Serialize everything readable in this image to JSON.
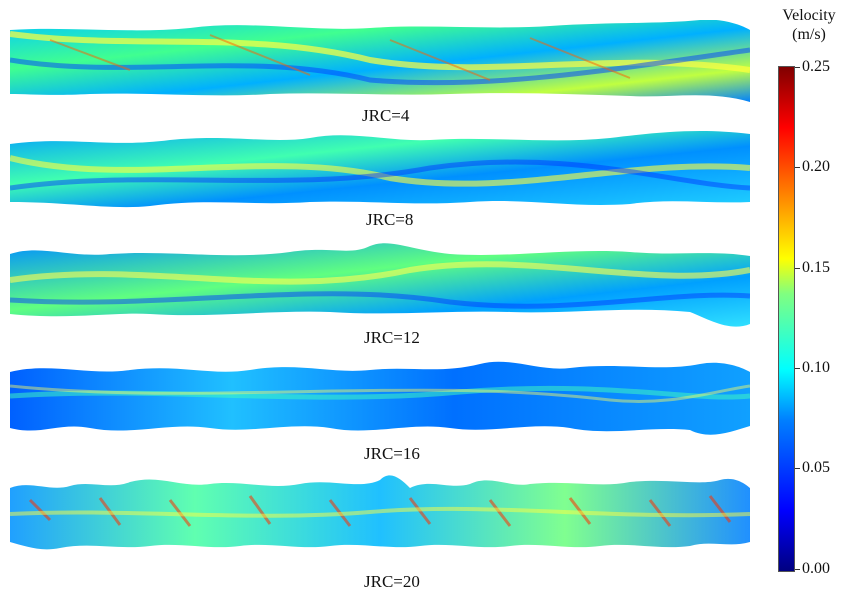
{
  "colorbar": {
    "title_line1": "Velocity",
    "title_line2": "(m/s)",
    "ticks": [
      "0.25",
      "0.20",
      "0.15",
      "0.10",
      "0.05",
      "0.00"
    ],
    "colors": [
      "#000080",
      "#0000ff",
      "#0080ff",
      "#00ffff",
      "#80ff80",
      "#ffff00",
      "#ff8000",
      "#ff0000",
      "#800000"
    ]
  },
  "panels": [
    {
      "label": "JRC=4"
    },
    {
      "label": "JRC=8"
    },
    {
      "label": "JRC=12"
    },
    {
      "label": "JRC=16"
    },
    {
      "label": "JRC=20"
    }
  ]
}
